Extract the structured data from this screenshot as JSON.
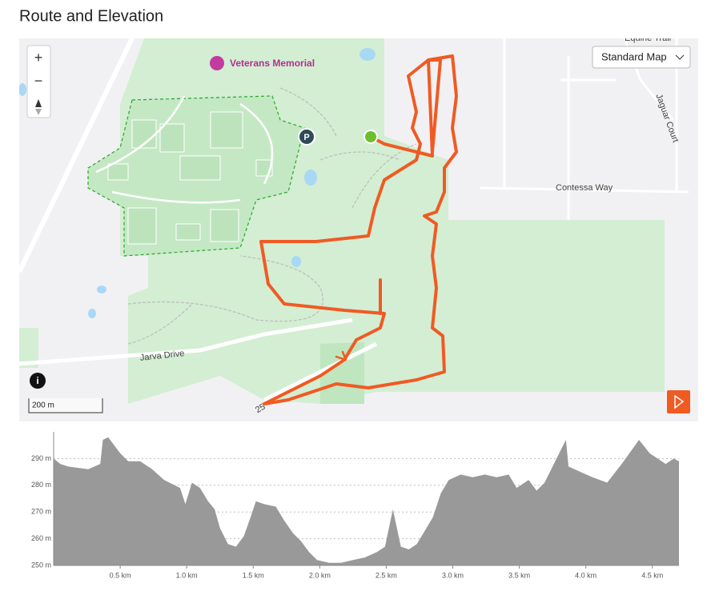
{
  "header": {
    "title": "Route and Elevation"
  },
  "map": {
    "map_type": "Standard Map",
    "zoom_in": "+",
    "zoom_out": "−",
    "places": [
      "Veterans Memorial",
      "Equine Trail",
      "Jaguar Court",
      "Contessa Way",
      "Jarva Drive",
      "25"
    ],
    "parking": "P",
    "scale": "200 m",
    "info": "i"
  },
  "chart_data": {
    "type": "area",
    "color": "#999999",
    "grid": true,
    "x": [
      0,
      0.05,
      0.11,
      0.26,
      0.35,
      0.37,
      0.41,
      0.5,
      0.56,
      0.65,
      0.74,
      0.83,
      0.95,
      0.99,
      1.04,
      1.1,
      1.16,
      1.21,
      1.25,
      1.31,
      1.37,
      1.43,
      1.48,
      1.52,
      1.58,
      1.67,
      1.73,
      1.8,
      1.86,
      1.92,
      1.98,
      2.07,
      2.16,
      2.25,
      2.34,
      2.43,
      2.49,
      2.55,
      2.61,
      2.67,
      2.73,
      2.79,
      2.85,
      2.91,
      2.97,
      3.06,
      3.15,
      3.24,
      3.33,
      3.42,
      3.48,
      3.57,
      3.63,
      3.69,
      3.78,
      3.85,
      3.87,
      3.96,
      4.05,
      4.16,
      4.27,
      4.4,
      4.48,
      4.6,
      4.66,
      4.7
    ],
    "series": [
      {
        "values": [
          290,
          288,
          287,
          286,
          288,
          297,
          298,
          292,
          289,
          289,
          286,
          282,
          279,
          273,
          281,
          279,
          274,
          271,
          264,
          258,
          257,
          261,
          268,
          274,
          273,
          272,
          267,
          262,
          259,
          255,
          252,
          251,
          251,
          252,
          253,
          255,
          257,
          271,
          257,
          256,
          258,
          263,
          268,
          277,
          282,
          284,
          283,
          284,
          283,
          284,
          279,
          282,
          278,
          281,
          290,
          297,
          287,
          285,
          283,
          281,
          288,
          297,
          292,
          288,
          290,
          289
        ]
      }
    ],
    "xlim": [
      0,
      4.7
    ],
    "ylim": [
      250,
      300
    ],
    "xticks": [
      {
        "value": 0.5,
        "label": "0.5 km"
      },
      {
        "value": 1,
        "label": "1.0 km"
      },
      {
        "value": 1.5,
        "label": "1.5 km"
      },
      {
        "value": 2,
        "label": "2.0 km"
      },
      {
        "value": 2.5,
        "label": "2.5 km"
      },
      {
        "value": 3,
        "label": "3.0 km"
      },
      {
        "value": 3.5,
        "label": "3.5 km"
      },
      {
        "value": 4,
        "label": "4.0 km"
      },
      {
        "value": 4.5,
        "label": "4.5 km"
      }
    ],
    "yticks": [
      {
        "value": 250,
        "label": "250 m"
      },
      {
        "value": 260,
        "label": "260 m"
      },
      {
        "value": 270,
        "label": "270 m"
      },
      {
        "value": 280,
        "label": "280 m"
      },
      {
        "value": 290,
        "label": "290 m"
      }
    ]
  }
}
